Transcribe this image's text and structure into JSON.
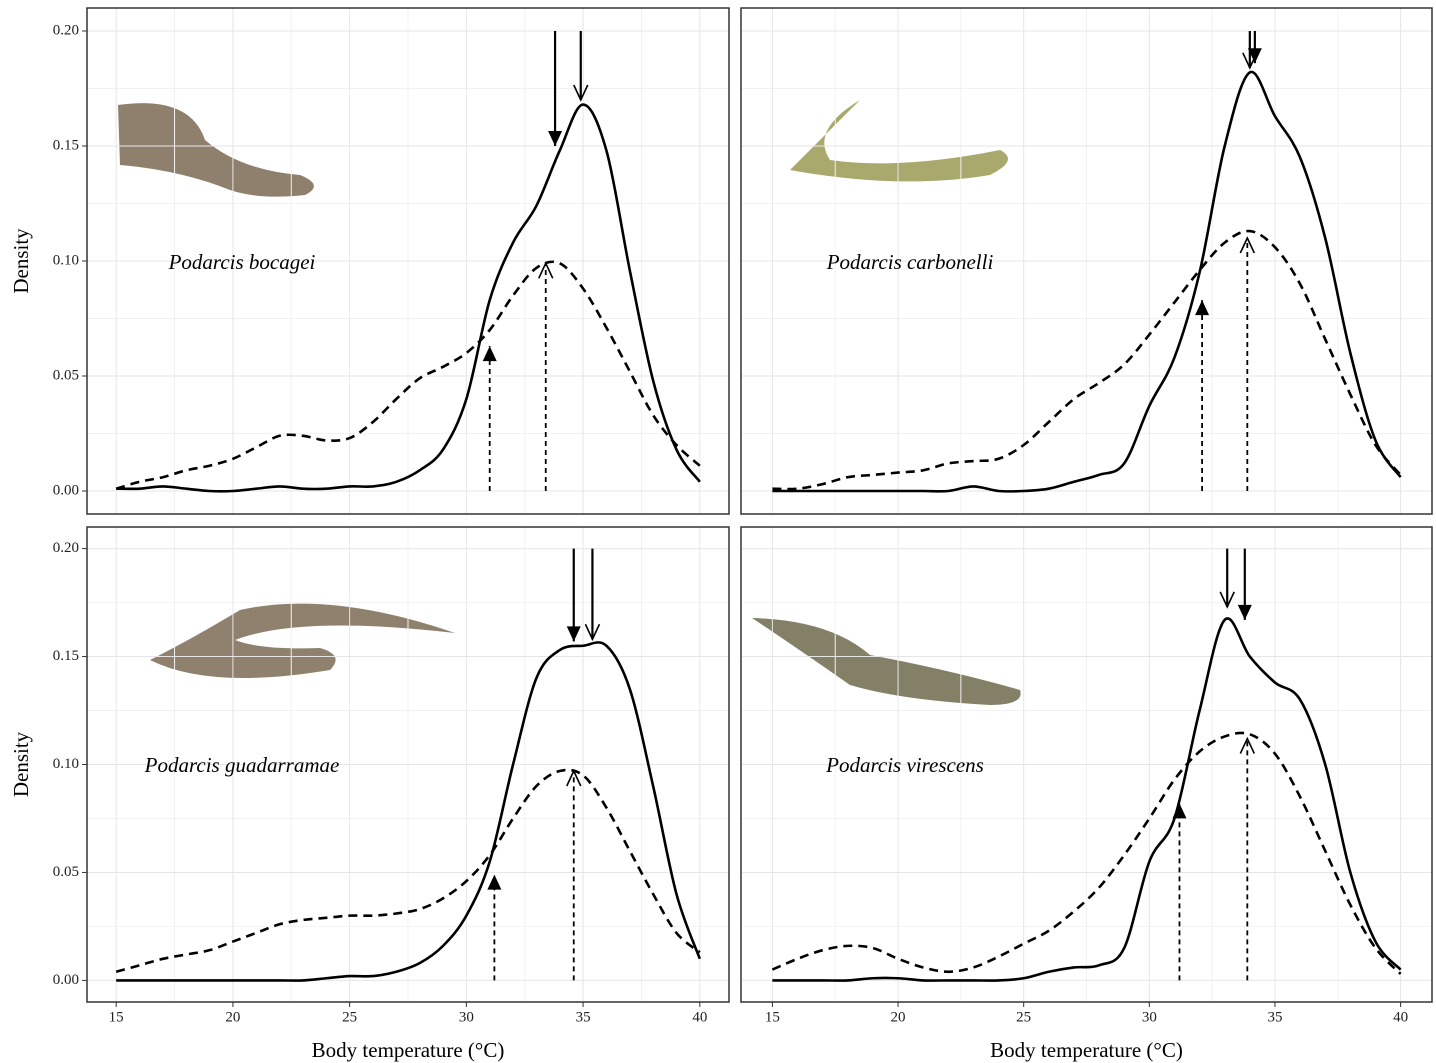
{
  "chart_data": [
    {
      "type": "line",
      "title": "Podarcis bocagei",
      "ylabel": "Density",
      "x": [
        15,
        16,
        17,
        18,
        19,
        20,
        21,
        22,
        23,
        24,
        25,
        26,
        27,
        28,
        29,
        30,
        31,
        32,
        33,
        34,
        35,
        36,
        37,
        38,
        39,
        40
      ],
      "series": [
        {
          "color": "#000000",
          "dash": "solid",
          "values": [
            0.001,
            0.001,
            0.002,
            0.001,
            0,
            0,
            0.001,
            0.002,
            0.001,
            0.001,
            0.002,
            0.002,
            0.004,
            0.009,
            0.018,
            0.04,
            0.083,
            0.108,
            0.124,
            0.148,
            0.168,
            0.148,
            0.096,
            0.048,
            0.018,
            0.004
          ]
        },
        {
          "color": "#000000",
          "dash": "dashed",
          "values": [
            0.001,
            0.004,
            0.006,
            0.009,
            0.011,
            0.014,
            0.019,
            0.024,
            0.024,
            0.022,
            0.023,
            0.03,
            0.04,
            0.049,
            0.054,
            0.06,
            0.07,
            0.085,
            0.097,
            0.099,
            0.088,
            0.071,
            0.052,
            0.033,
            0.02,
            0.011
          ]
        }
      ],
      "arrows": [
        {
          "x": 33.8,
          "from": 0.2,
          "to": 0.15,
          "line": "solid",
          "head": "filled"
        },
        {
          "x": 34.9,
          "from": 0.2,
          "to": 0.17,
          "line": "solid",
          "head": "open"
        },
        {
          "x": 31.0,
          "from": 0,
          "to": 0.063,
          "line": "dashed",
          "head": "filled"
        },
        {
          "x": 33.4,
          "from": 0,
          "to": 0.099,
          "line": "dashed",
          "head": "open"
        }
      ],
      "xlim": [
        13.75,
        41.25
      ],
      "ylim": [
        -0.01,
        0.21
      ],
      "xticks": [
        15,
        20,
        25,
        30,
        35,
        40
      ],
      "yticks": [
        {
          "value": 0,
          "label": "0.00"
        },
        {
          "value": 0.05,
          "label": "0.05"
        },
        {
          "value": 0.1,
          "label": "0.10"
        },
        {
          "value": 0.15,
          "label": "0.15"
        },
        {
          "value": 0.2,
          "label": "0.20"
        }
      ],
      "grid": true
    },
    {
      "type": "line",
      "title": "Podarcis carbonelli",
      "x": [
        15,
        16,
        17,
        18,
        19,
        20,
        21,
        22,
        23,
        24,
        25,
        26,
        27,
        28,
        29,
        30,
        31,
        32,
        33,
        34,
        35,
        36,
        37,
        38,
        39,
        40
      ],
      "series": [
        {
          "color": "#000000",
          "dash": "solid",
          "values": [
            0,
            0,
            0,
            0,
            0,
            0,
            0,
            0,
            0.002,
            0,
            0,
            0.001,
            0.004,
            0.007,
            0.012,
            0.037,
            0.058,
            0.095,
            0.15,
            0.182,
            0.163,
            0.145,
            0.11,
            0.06,
            0.022,
            0.006
          ]
        },
        {
          "color": "#000000",
          "dash": "dashed",
          "values": [
            0.001,
            0.001,
            0.003,
            0.006,
            0.007,
            0.008,
            0.009,
            0.012,
            0.013,
            0.014,
            0.02,
            0.03,
            0.04,
            0.047,
            0.055,
            0.068,
            0.082,
            0.096,
            0.108,
            0.113,
            0.106,
            0.09,
            0.066,
            0.042,
            0.02,
            0.007
          ]
        }
      ],
      "arrows": [
        {
          "x": 34.2,
          "from": 0.2,
          "to": 0.186,
          "line": "solid",
          "head": "filled"
        },
        {
          "x": 34.0,
          "from": 0.2,
          "to": 0.184,
          "line": "solid",
          "head": "open"
        },
        {
          "x": 32.1,
          "from": 0,
          "to": 0.083,
          "line": "dashed",
          "head": "filled"
        },
        {
          "x": 33.9,
          "from": 0,
          "to": 0.11,
          "line": "dashed",
          "head": "open"
        }
      ],
      "xlim": [
        13.75,
        41.25
      ],
      "ylim": [
        -0.01,
        0.21
      ],
      "xticks": [
        15,
        20,
        25,
        30,
        35,
        40
      ],
      "yticks": [
        0,
        0.05,
        0.1,
        0.15,
        0.2
      ],
      "grid": true
    },
    {
      "type": "line",
      "title": "Podarcis guadarramae",
      "ylabel": "Density",
      "xlabel": "Body temperature (°C)",
      "x": [
        15,
        16,
        17,
        18,
        19,
        20,
        21,
        22,
        23,
        24,
        25,
        26,
        27,
        28,
        29,
        30,
        31,
        32,
        33,
        34,
        35,
        36,
        37,
        38,
        39,
        40
      ],
      "series": [
        {
          "color": "#000000",
          "dash": "solid",
          "values": [
            0,
            0,
            0,
            0,
            0,
            0,
            0,
            0,
            0,
            0.001,
            0.002,
            0.002,
            0.004,
            0.008,
            0.016,
            0.03,
            0.055,
            0.1,
            0.14,
            0.153,
            0.155,
            0.155,
            0.135,
            0.09,
            0.04,
            0.01
          ]
        },
        {
          "color": "#000000",
          "dash": "dashed",
          "values": [
            0.004,
            0.007,
            0.01,
            0.012,
            0.014,
            0.018,
            0.022,
            0.026,
            0.028,
            0.029,
            0.03,
            0.03,
            0.031,
            0.033,
            0.038,
            0.046,
            0.058,
            0.075,
            0.09,
            0.097,
            0.095,
            0.08,
            0.06,
            0.04,
            0.022,
            0.013
          ]
        }
      ],
      "arrows": [
        {
          "x": 34.6,
          "from": 0.2,
          "to": 0.157,
          "line": "solid",
          "head": "filled"
        },
        {
          "x": 35.4,
          "from": 0.2,
          "to": 0.158,
          "line": "solid",
          "head": "open"
        },
        {
          "x": 31.2,
          "from": 0,
          "to": 0.049,
          "line": "dashed",
          "head": "filled"
        },
        {
          "x": 34.6,
          "from": 0,
          "to": 0.097,
          "line": "dashed",
          "head": "open"
        }
      ],
      "xlim": [
        13.75,
        41.25
      ],
      "ylim": [
        -0.01,
        0.21
      ],
      "xticks": [
        15,
        20,
        25,
        30,
        35,
        40
      ],
      "yticks": [
        {
          "value": 0,
          "label": "0.00"
        },
        {
          "value": 0.05,
          "label": "0.05"
        },
        {
          "value": 0.1,
          "label": "0.10"
        },
        {
          "value": 0.15,
          "label": "0.15"
        },
        {
          "value": 0.2,
          "label": "0.20"
        }
      ],
      "grid": true
    },
    {
      "type": "line",
      "title": "Podarcis virescens",
      "xlabel": "Body temperature (°C)",
      "x": [
        15,
        16,
        17,
        18,
        19,
        20,
        21,
        22,
        23,
        24,
        25,
        26,
        27,
        28,
        29,
        30,
        31,
        32,
        33,
        34,
        35,
        36,
        37,
        38,
        39,
        40
      ],
      "series": [
        {
          "color": "#000000",
          "dash": "solid",
          "values": [
            0,
            0,
            0,
            0,
            0.001,
            0.001,
            0,
            0,
            0,
            0,
            0.001,
            0.004,
            0.006,
            0.007,
            0.015,
            0.055,
            0.075,
            0.125,
            0.167,
            0.15,
            0.138,
            0.13,
            0.1,
            0.05,
            0.018,
            0.005
          ]
        },
        {
          "color": "#000000",
          "dash": "dashed",
          "values": [
            0.005,
            0.01,
            0.014,
            0.016,
            0.015,
            0.01,
            0.006,
            0.004,
            0.006,
            0.011,
            0.017,
            0.023,
            0.032,
            0.043,
            0.058,
            0.075,
            0.093,
            0.106,
            0.113,
            0.114,
            0.105,
            0.085,
            0.06,
            0.035,
            0.015,
            0.003
          ]
        }
      ],
      "arrows": [
        {
          "x": 33.1,
          "from": 0.2,
          "to": 0.173,
          "line": "solid",
          "head": "open"
        },
        {
          "x": 33.8,
          "from": 0.2,
          "to": 0.167,
          "line": "solid",
          "head": "filled"
        },
        {
          "x": 31.2,
          "from": 0,
          "to": 0.082,
          "line": "dashed",
          "head": "filled"
        },
        {
          "x": 33.9,
          "from": 0,
          "to": 0.112,
          "line": "dashed",
          "head": "open"
        }
      ],
      "xlim": [
        13.75,
        41.25
      ],
      "ylim": [
        -0.01,
        0.21
      ],
      "xticks": [
        15,
        20,
        25,
        30,
        35,
        40
      ],
      "yticks": [
        0,
        0.05,
        0.1,
        0.15,
        0.2
      ],
      "grid": true
    }
  ]
}
